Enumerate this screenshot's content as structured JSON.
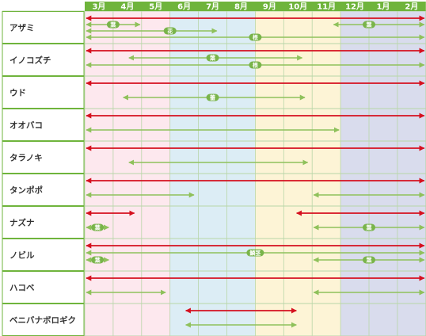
{
  "months": [
    "3月",
    "4月",
    "5月",
    "6月",
    "7月",
    "8月",
    "9月",
    "10月",
    "11月",
    "12月",
    "1月",
    "2月"
  ],
  "colors": {
    "header": "#6fb43c",
    "label_border": "#6fb43c",
    "red_arrow": "#d5101f",
    "green_arrow": "#8fc15b",
    "pill": "#79b44a",
    "spring": "#fde8ee",
    "summer": "#dcedf5",
    "autumn": "#fdf4d6",
    "winter": "#d9dced",
    "grid_line": "#b8d6a8"
  },
  "season_by_month": [
    "spring",
    "spring",
    "spring",
    "summer",
    "summer",
    "summer",
    "autumn",
    "autumn",
    "autumn",
    "winter",
    "winter",
    "winter"
  ],
  "pill_labels": {
    "leaf": "葉",
    "flower": "花",
    "root": "根",
    "young_stalk": "蕾",
    "bulb": "鱗茎"
  },
  "plants": [
    {
      "name": "アザミ",
      "red": [
        [
          0,
          12
        ]
      ],
      "green": [
        {
          "from": 0,
          "to": 2,
          "label": "leaf",
          "at": 1
        },
        {
          "from": 8.7,
          "to": 12,
          "label": "leaf",
          "at": 10
        },
        {
          "from": 0,
          "to": 4.7,
          "label": "flower",
          "at": 3
        },
        {
          "from": 0,
          "to": 12,
          "label": "root",
          "at": 6
        }
      ]
    },
    {
      "name": "イノコズチ",
      "red": [
        [
          0,
          12
        ]
      ],
      "green": [
        {
          "from": 1.5,
          "to": 7.7,
          "label": "leaf",
          "at": 4.5
        },
        {
          "from": 0,
          "to": 12,
          "label": "root",
          "at": 6
        }
      ]
    },
    {
      "name": "ウド",
      "red": [
        [
          0,
          12
        ]
      ],
      "green": [
        {
          "from": 1.3,
          "to": 7.8,
          "label": "young_stalk",
          "at": 4.5
        }
      ]
    },
    {
      "name": "オオバコ",
      "red": [
        [
          0,
          12
        ]
      ],
      "green": [
        {
          "from": 0,
          "to": 9,
          "label": null,
          "at": null
        }
      ]
    },
    {
      "name": "タラノキ",
      "red": [
        [
          0,
          12
        ]
      ],
      "green": [
        {
          "from": 1.5,
          "to": 7.9,
          "label": null,
          "at": null
        }
      ]
    },
    {
      "name": "タンポポ",
      "red": [
        [
          0,
          12
        ]
      ],
      "green": [
        {
          "from": 0,
          "to": 3.9,
          "label": null,
          "at": null
        },
        {
          "from": 8,
          "to": 12,
          "label": null,
          "at": null
        }
      ]
    },
    {
      "name": "ナズナ",
      "red": [
        [
          0,
          1.8
        ],
        [
          7.4,
          12
        ]
      ],
      "green": [
        {
          "from": 0,
          "to": 0.9,
          "label": "leaf",
          "at": 0.45
        },
        {
          "from": 8,
          "to": 12,
          "label": "leaf",
          "at": 10
        }
      ]
    },
    {
      "name": "ノビル",
      "red": [
        [
          0,
          12
        ]
      ],
      "green": [
        {
          "from": 0,
          "to": 12,
          "label": "bulb",
          "at": 6
        },
        {
          "from": 0,
          "to": 0.9,
          "label": "leaf",
          "at": 0.45
        },
        {
          "from": 8,
          "to": 12,
          "label": "leaf",
          "at": 10
        }
      ]
    },
    {
      "name": "ハコベ",
      "red": [
        [
          0,
          12
        ]
      ],
      "green": [
        {
          "from": 0,
          "to": 2.9,
          "label": null,
          "at": null
        },
        {
          "from": 8,
          "to": 12,
          "label": null,
          "at": null
        }
      ]
    },
    {
      "name": "ベニバナボロギク",
      "red": [
        [
          3.5,
          7.5
        ]
      ],
      "green": [
        {
          "from": 3.5,
          "to": 7.5,
          "label": null,
          "at": null
        }
      ]
    }
  ]
}
